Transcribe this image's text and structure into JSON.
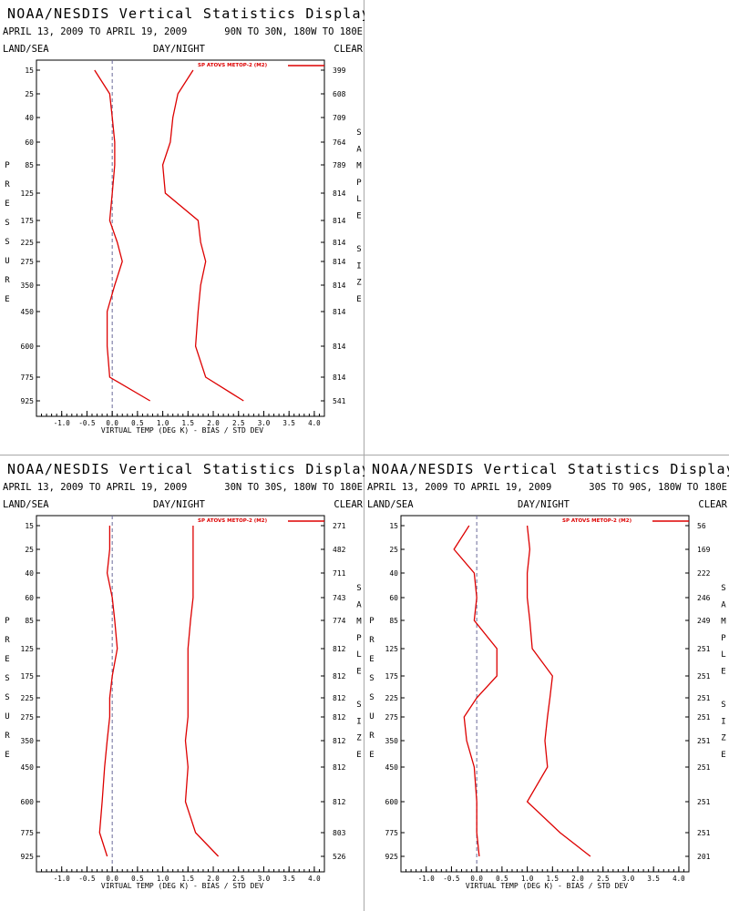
{
  "panels": [
    {
      "id": "p1",
      "title": "NOAA/NESDIS Vertical Statistics Display",
      "date_range": "APRIL 13, 2009 TO APRIL 19, 2009",
      "region": "90N TO 30N, 180W TO 180E",
      "land_sea": "LAND/SEA",
      "day_night": "DAY/NIGHT",
      "clear": "CLEAR"
    },
    {
      "id": "p2",
      "title": "NOAA/NESDIS Vertical Statistics Display",
      "date_range": "APRIL 13, 2009 TO APRIL 19, 2009",
      "region": "30N TO 30S, 180W TO 180E",
      "land_sea": "LAND/SEA",
      "day_night": "DAY/NIGHT",
      "clear": "CLEAR"
    },
    {
      "id": "p3",
      "title": "NOAA/NESDIS Vertical Statistics Display",
      "date_range": "APRIL 13, 2009 TO APRIL 19, 2009",
      "region": "30S TO 90S, 180W TO 180E",
      "land_sea": "LAND/SEA",
      "day_night": "DAY/NIGHT",
      "clear": "CLEAR"
    }
  ],
  "chart_data": [
    {
      "type": "line",
      "panel": "p1",
      "xlabel": "VIRTUAL TEMP (DEG K) - BIAS / STD DEV",
      "ylabel": "PRESSURE",
      "y2label": "SAMPLE SIZE",
      "xlim": [
        -1.5,
        4.2
      ],
      "xticks": [
        -1.0,
        -0.5,
        0.0,
        0.5,
        1.0,
        1.5,
        2.0,
        2.5,
        3.0,
        3.5,
        4.0
      ],
      "xtick_labels": [
        "-1.0",
        "-0.5",
        "0.0",
        "0.5",
        "1.0",
        "1.5",
        "2.0",
        "2.5",
        "3.0",
        "3.5",
        "4.0"
      ],
      "y": [
        15,
        25,
        40,
        60,
        85,
        125,
        175,
        225,
        275,
        350,
        450,
        600,
        775,
        925
      ],
      "y_tick_labels": [
        "15",
        "25",
        "40",
        "60",
        "85",
        "125",
        "175",
        "225",
        "275",
        "350",
        "450",
        "600",
        "775",
        "925"
      ],
      "sample_size": [
        "399",
        "608",
        "709",
        "764",
        "789",
        "814",
        "814",
        "814",
        "814",
        "814",
        "814",
        "814",
        "814",
        "541"
      ],
      "legend": "SP ATOVS METOP-2 (M2)",
      "color": "#dd0000",
      "bias": [
        -0.35,
        -0.05,
        0.0,
        0.05,
        0.05,
        0.0,
        -0.05,
        0.1,
        0.2,
        0.05,
        -0.1,
        -0.1,
        -0.05,
        0.75
      ],
      "std_dev": [
        1.6,
        1.3,
        1.2,
        1.15,
        1.0,
        1.05,
        1.7,
        1.75,
        1.85,
        1.75,
        1.7,
        1.65,
        1.85,
        2.6
      ]
    },
    {
      "type": "line",
      "panel": "p2",
      "xlabel": "VIRTUAL TEMP (DEG K) - BIAS / STD DEV",
      "ylabel": "PRESSURE",
      "y2label": "SAMPLE SIZE",
      "xlim": [
        -1.5,
        4.2
      ],
      "xticks": [
        -1.0,
        -0.5,
        0.0,
        0.5,
        1.0,
        1.5,
        2.0,
        2.5,
        3.0,
        3.5,
        4.0
      ],
      "xtick_labels": [
        "-1.0",
        "-0.5",
        "0.0",
        "0.5",
        "1.0",
        "1.5",
        "2.0",
        "2.5",
        "3.0",
        "3.5",
        "4.0"
      ],
      "y": [
        15,
        25,
        40,
        60,
        85,
        125,
        175,
        225,
        275,
        350,
        450,
        600,
        775,
        925
      ],
      "y_tick_labels": [
        "15",
        "25",
        "40",
        "60",
        "85",
        "125",
        "175",
        "225",
        "275",
        "350",
        "450",
        "600",
        "775",
        "925"
      ],
      "sample_size": [
        "271",
        "482",
        "711",
        "743",
        "774",
        "812",
        "812",
        "812",
        "812",
        "812",
        "812",
        "812",
        "803",
        "526"
      ],
      "legend": "SP ATOVS METOP-2 (M2)",
      "color": "#dd0000",
      "bias": [
        -0.05,
        -0.05,
        -0.1,
        0.0,
        0.05,
        0.1,
        0.0,
        -0.05,
        -0.05,
        -0.1,
        -0.15,
        -0.2,
        -0.25,
        -0.1
      ],
      "std_dev": [
        1.6,
        1.6,
        1.6,
        1.6,
        1.55,
        1.5,
        1.5,
        1.5,
        1.5,
        1.45,
        1.5,
        1.45,
        1.65,
        2.1
      ]
    },
    {
      "type": "line",
      "panel": "p3",
      "xlabel": "VIRTUAL TEMP (DEG K) - BIAS / STD DEV",
      "ylabel": "PRESSURE",
      "y2label": "SAMPLE SIZE",
      "xlim": [
        -1.5,
        4.2
      ],
      "xticks": [
        -1.0,
        -0.5,
        0.0,
        0.5,
        1.0,
        1.5,
        2.0,
        2.5,
        3.0,
        3.5,
        4.0
      ],
      "xtick_labels": [
        "-1.0",
        "-0.5",
        "0.0",
        "0.5",
        "1.0",
        "1.5",
        "2.0",
        "2.5",
        "3.0",
        "3.5",
        "4.0"
      ],
      "y": [
        15,
        25,
        40,
        60,
        85,
        125,
        175,
        225,
        275,
        350,
        450,
        600,
        775,
        925
      ],
      "y_tick_labels": [
        "15",
        "25",
        "40",
        "60",
        "85",
        "125",
        "175",
        "225",
        "275",
        "350",
        "450",
        "600",
        "775",
        "925"
      ],
      "sample_size": [
        "56",
        "169",
        "222",
        "246",
        "249",
        "251",
        "251",
        "251",
        "251",
        "251",
        "251",
        "251",
        "251",
        "201"
      ],
      "legend": "SP ATOVS METOP-2 (M2)",
      "color": "#dd0000",
      "bias": [
        -0.15,
        -0.45,
        -0.05,
        0.0,
        -0.05,
        0.4,
        0.4,
        0.0,
        -0.25,
        -0.2,
        -0.05,
        0.0,
        0.0,
        0.05
      ],
      "std_dev": [
        1.0,
        1.05,
        1.0,
        1.0,
        1.05,
        1.1,
        1.5,
        1.45,
        1.4,
        1.35,
        1.4,
        1.0,
        1.65,
        2.25
      ]
    }
  ]
}
